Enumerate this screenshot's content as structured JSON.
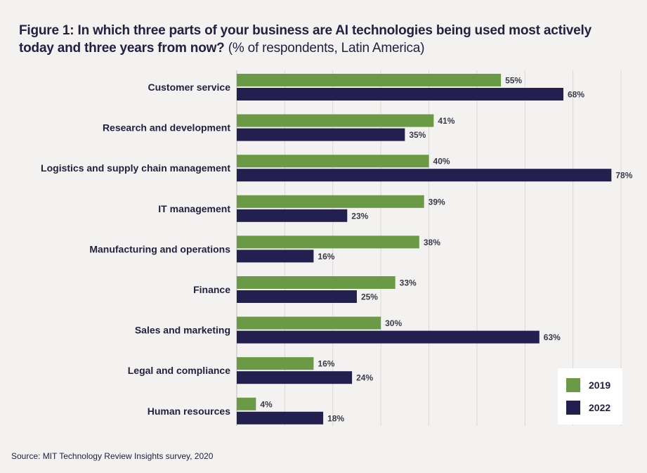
{
  "title": {
    "bold": "Figure 1: In which three parts of your business are AI technologies being used most actively today and three years from now?",
    "normal": "(% of respondents, Latin America)"
  },
  "source": "Source: MIT Technology Review Insights survey, 2020",
  "colors": {
    "series_2019": "#6a9a45",
    "series_2022": "#23204f",
    "gridline": "#d9d8d5",
    "background": "#f3f2f0"
  },
  "chart_data": {
    "type": "bar",
    "orientation": "horizontal",
    "title": "Figure 1: In which three parts of your business are AI technologies being used most actively today and three years from now? (% of respondents, Latin America)",
    "categories": [
      "Customer service",
      "Research and development",
      "Logistics and supply chain management",
      "IT management",
      "Manufacturing and operations",
      "Finance",
      "Sales and marketing",
      "Legal and compliance",
      "Human resources"
    ],
    "series": [
      {
        "name": "2019",
        "color": "#6a9a45",
        "values": [
          55,
          41,
          40,
          39,
          38,
          33,
          30,
          16,
          4
        ]
      },
      {
        "name": "2022",
        "color": "#23204f",
        "values": [
          68,
          35,
          78,
          23,
          16,
          25,
          63,
          24,
          18
        ]
      }
    ],
    "value_suffix": "%",
    "xlim": [
      0,
      80
    ],
    "grid": true,
    "legend": "bottom-right"
  }
}
